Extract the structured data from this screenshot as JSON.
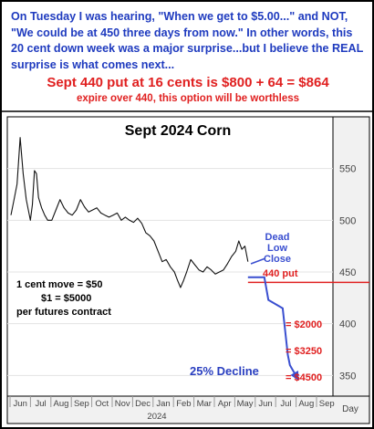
{
  "header": {
    "intro_text": "On Tuesday I was hearing, \"When we get to $5.00...\" and NOT, \"We could be at 450 three days from now.\" In other words, this 20 cent down week was a major surprise...but I believe the REAL surprise is what comes next...",
    "headline": "Sept 440 put at 16 cents is $800 + 64 = $864",
    "subline": "expire over 440, this option will be worthless"
  },
  "colors": {
    "blue_text": "#1f3bbf",
    "red_text": "#e02020",
    "price_line": "#111111",
    "projection_line": "#3a4fd0",
    "put_line": "#e02020"
  },
  "chart_data": {
    "type": "line",
    "title": "Sept 2024 Corn",
    "ylim": [
      330,
      600
    ],
    "y_ticks": [
      350,
      400,
      450,
      500,
      550
    ],
    "y_axis_label": "Day",
    "x_ticks": [
      "Jun",
      "Jul",
      "Aug",
      "Sep",
      "Oct",
      "Nov",
      "Dec",
      "Jan",
      "Feb",
      "Mar",
      "Apr",
      "May",
      "Jun",
      "Jul",
      "Aug",
      "Sep"
    ],
    "year_label": "2024",
    "series": [
      {
        "x": [
          0,
          0.15,
          0.3,
          0.45,
          0.6,
          0.75,
          0.95,
          1.05,
          1.15,
          1.25,
          1.35,
          1.5,
          1.65,
          1.8,
          2.0,
          2.2,
          2.4,
          2.6,
          2.8,
          3.0,
          3.2,
          3.4,
          3.6,
          3.8,
          4.0,
          4.2,
          4.4,
          4.6,
          4.8,
          5.0,
          5.2,
          5.4,
          5.6,
          5.8,
          6.0,
          6.2,
          6.4,
          6.6,
          6.8,
          7.0,
          7.2,
          7.4,
          7.6,
          7.8,
          8.0,
          8.15,
          8.3,
          8.45,
          8.6,
          8.8,
          9.0,
          9.2,
          9.4,
          9.6,
          9.8,
          10.0,
          10.2,
          10.4,
          10.6,
          10.8,
          11.0,
          11.15,
          11.3,
          11.45,
          11.6
        ],
        "y": [
          505,
          520,
          535,
          580,
          545,
          520,
          500,
          515,
          548,
          545,
          522,
          512,
          505,
          500,
          500,
          510,
          520,
          512,
          507,
          505,
          510,
          520,
          513,
          508,
          510,
          512,
          507,
          505,
          503,
          505,
          507,
          500,
          503,
          500,
          498,
          502,
          497,
          488,
          485,
          480,
          470,
          460,
          462,
          455,
          450,
          442,
          435,
          442,
          450,
          462,
          457,
          452,
          450,
          455,
          452,
          448,
          450,
          452,
          458,
          465,
          470,
          480,
          472,
          475,
          460
        ]
      }
    ],
    "reference_line": {
      "label": "440 put",
      "value": 440
    },
    "projection": {
      "x": [
        11.6,
        12.4,
        12.6,
        13.3,
        13.55,
        13.65,
        14.0
      ],
      "y": [
        445,
        445,
        423,
        415,
        370,
        360,
        348
      ]
    },
    "annotations": {
      "dead_low_close": [
        "Dead",
        "Low",
        "Close"
      ],
      "move_note": [
        "1 cent move = $50",
        "$1 = $5000",
        "per futures contract"
      ],
      "decline": "25% Decline",
      "levels": [
        "= $2000",
        "= $3250",
        "= $4500"
      ]
    }
  }
}
